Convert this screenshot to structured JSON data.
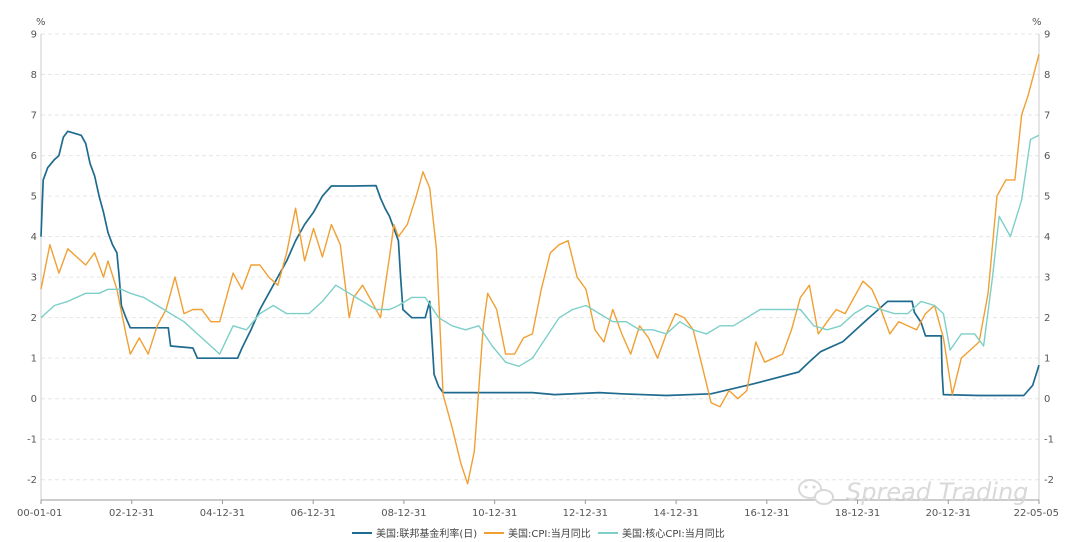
{
  "chart_data": {
    "type": "line",
    "y_unit_left": "%",
    "y_unit_right": "%",
    "ylim": [
      -2.5,
      9
    ],
    "yticks": [
      9,
      8,
      7,
      6,
      5,
      4,
      3,
      2,
      1,
      0,
      -1,
      -2
    ],
    "x_ticks": [
      "00-01-01",
      "02-12-31",
      "04-12-31",
      "06-12-31",
      "08-12-31",
      "10-12-31",
      "12-12-31",
      "14-12-31",
      "16-12-31",
      "18-12-31",
      "20-12-31",
      "22-05-05"
    ],
    "grid": "horizontal-dashed",
    "legend_position": "bottom-center",
    "series": [
      {
        "name": "美国:联邦基金利率(日)",
        "color": "#1f6b8f",
        "points": [
          [
            2000.0,
            4.0
          ],
          [
            2000.05,
            5.4
          ],
          [
            2000.15,
            5.7
          ],
          [
            2000.3,
            5.9
          ],
          [
            2000.4,
            6.0
          ],
          [
            2000.5,
            6.45
          ],
          [
            2000.6,
            6.6
          ],
          [
            2000.75,
            6.55
          ],
          [
            2000.9,
            6.5
          ],
          [
            2001.0,
            6.3
          ],
          [
            2001.1,
            5.8
          ],
          [
            2001.2,
            5.5
          ],
          [
            2001.3,
            5.0
          ],
          [
            2001.4,
            4.6
          ],
          [
            2001.5,
            4.1
          ],
          [
            2001.6,
            3.8
          ],
          [
            2001.7,
            3.6
          ],
          [
            2001.75,
            3.0
          ],
          [
            2001.8,
            2.3
          ],
          [
            2001.9,
            2.0
          ],
          [
            2002.0,
            1.75
          ],
          [
            2002.5,
            1.75
          ],
          [
            2002.85,
            1.75
          ],
          [
            2002.9,
            1.3
          ],
          [
            2003.4,
            1.25
          ],
          [
            2003.5,
            1.0
          ],
          [
            2004.4,
            1.0
          ],
          [
            2004.5,
            1.25
          ],
          [
            2004.7,
            1.7
          ],
          [
            2004.9,
            2.2
          ],
          [
            2005.1,
            2.6
          ],
          [
            2005.3,
            3.0
          ],
          [
            2005.5,
            3.4
          ],
          [
            2005.7,
            3.9
          ],
          [
            2005.9,
            4.3
          ],
          [
            2006.1,
            4.6
          ],
          [
            2006.3,
            5.0
          ],
          [
            2006.5,
            5.25
          ],
          [
            2007.0,
            5.25
          ],
          [
            2007.5,
            5.26
          ],
          [
            2007.6,
            4.95
          ],
          [
            2007.7,
            4.7
          ],
          [
            2007.8,
            4.5
          ],
          [
            2007.9,
            4.2
          ],
          [
            2008.0,
            3.9
          ],
          [
            2008.05,
            3.0
          ],
          [
            2008.1,
            2.2
          ],
          [
            2008.3,
            2.0
          ],
          [
            2008.6,
            2.0
          ],
          [
            2008.7,
            2.4
          ],
          [
            2008.75,
            1.5
          ],
          [
            2008.8,
            0.6
          ],
          [
            2008.9,
            0.3
          ],
          [
            2009.0,
            0.15
          ],
          [
            2010.0,
            0.15
          ],
          [
            2011.0,
            0.15
          ],
          [
            2011.5,
            0.1
          ],
          [
            2012.5,
            0.15
          ],
          [
            2013.0,
            0.12
          ],
          [
            2014.0,
            0.08
          ],
          [
            2015.0,
            0.12
          ],
          [
            2015.96,
            0.37
          ],
          [
            2016.96,
            0.66
          ],
          [
            2017.2,
            0.91
          ],
          [
            2017.45,
            1.16
          ],
          [
            2017.95,
            1.41
          ],
          [
            2018.2,
            1.66
          ],
          [
            2018.45,
            1.91
          ],
          [
            2018.7,
            2.16
          ],
          [
            2018.95,
            2.4
          ],
          [
            2019.5,
            2.4
          ],
          [
            2019.55,
            2.13
          ],
          [
            2019.7,
            1.88
          ],
          [
            2019.8,
            1.55
          ],
          [
            2020.15,
            1.55
          ],
          [
            2020.17,
            0.65
          ],
          [
            2020.2,
            0.1
          ],
          [
            2021.0,
            0.08
          ],
          [
            2022.0,
            0.08
          ],
          [
            2022.2,
            0.33
          ],
          [
            2022.34,
            0.83
          ]
        ]
      },
      {
        "name": "美国:CPI:当月同比",
        "color": "#f0a033",
        "points": [
          [
            2000.0,
            2.7
          ],
          [
            2000.2,
            3.8
          ],
          [
            2000.4,
            3.1
          ],
          [
            2000.6,
            3.7
          ],
          [
            2000.8,
            3.5
          ],
          [
            2001.0,
            3.3
          ],
          [
            2001.2,
            3.6
          ],
          [
            2001.4,
            3.0
          ],
          [
            2001.5,
            3.4
          ],
          [
            2001.7,
            2.7
          ],
          [
            2001.9,
            1.6
          ],
          [
            2002.0,
            1.1
          ],
          [
            2002.2,
            1.5
          ],
          [
            2002.4,
            1.1
          ],
          [
            2002.6,
            1.8
          ],
          [
            2002.8,
            2.2
          ],
          [
            2003.0,
            3.0
          ],
          [
            2003.2,
            2.1
          ],
          [
            2003.4,
            2.2
          ],
          [
            2003.6,
            2.2
          ],
          [
            2003.8,
            1.9
          ],
          [
            2004.0,
            1.9
          ],
          [
            2004.3,
            3.1
          ],
          [
            2004.5,
            2.7
          ],
          [
            2004.7,
            3.3
          ],
          [
            2004.9,
            3.3
          ],
          [
            2005.1,
            3.0
          ],
          [
            2005.3,
            2.8
          ],
          [
            2005.5,
            3.6
          ],
          [
            2005.7,
            4.7
          ],
          [
            2005.9,
            3.4
          ],
          [
            2006.1,
            4.2
          ],
          [
            2006.3,
            3.5
          ],
          [
            2006.5,
            4.3
          ],
          [
            2006.7,
            3.8
          ],
          [
            2006.9,
            2.0
          ],
          [
            2007.0,
            2.5
          ],
          [
            2007.2,
            2.8
          ],
          [
            2007.4,
            2.4
          ],
          [
            2007.6,
            2.0
          ],
          [
            2007.8,
            3.5
          ],
          [
            2007.9,
            4.3
          ],
          [
            2008.0,
            4.0
          ],
          [
            2008.2,
            4.3
          ],
          [
            2008.4,
            5.0
          ],
          [
            2008.55,
            5.6
          ],
          [
            2008.7,
            5.2
          ],
          [
            2008.85,
            3.7
          ],
          [
            2009.0,
            0.1
          ],
          [
            2009.2,
            -0.7
          ],
          [
            2009.4,
            -1.6
          ],
          [
            2009.55,
            -2.1
          ],
          [
            2009.7,
            -1.3
          ],
          [
            2009.9,
            1.8
          ],
          [
            2010.0,
            2.6
          ],
          [
            2010.2,
            2.2
          ],
          [
            2010.4,
            1.1
          ],
          [
            2010.6,
            1.1
          ],
          [
            2010.8,
            1.5
          ],
          [
            2011.0,
            1.6
          ],
          [
            2011.2,
            2.7
          ],
          [
            2011.4,
            3.6
          ],
          [
            2011.6,
            3.8
          ],
          [
            2011.8,
            3.9
          ],
          [
            2012.0,
            3.0
          ],
          [
            2012.2,
            2.7
          ],
          [
            2012.4,
            1.7
          ],
          [
            2012.6,
            1.4
          ],
          [
            2012.8,
            2.2
          ],
          [
            2013.0,
            1.6
          ],
          [
            2013.2,
            1.1
          ],
          [
            2013.4,
            1.8
          ],
          [
            2013.6,
            1.5
          ],
          [
            2013.8,
            1.0
          ],
          [
            2014.0,
            1.6
          ],
          [
            2014.2,
            2.1
          ],
          [
            2014.4,
            2.0
          ],
          [
            2014.6,
            1.7
          ],
          [
            2014.8,
            0.8
          ],
          [
            2015.0,
            -0.1
          ],
          [
            2015.2,
            -0.2
          ],
          [
            2015.4,
            0.2
          ],
          [
            2015.6,
            0.0
          ],
          [
            2015.8,
            0.2
          ],
          [
            2016.0,
            1.4
          ],
          [
            2016.2,
            0.9
          ],
          [
            2016.4,
            1.0
          ],
          [
            2016.6,
            1.1
          ],
          [
            2016.8,
            1.7
          ],
          [
            2017.0,
            2.5
          ],
          [
            2017.2,
            2.8
          ],
          [
            2017.4,
            1.6
          ],
          [
            2017.6,
            1.9
          ],
          [
            2017.8,
            2.2
          ],
          [
            2018.0,
            2.1
          ],
          [
            2018.2,
            2.5
          ],
          [
            2018.4,
            2.9
          ],
          [
            2018.6,
            2.7
          ],
          [
            2018.8,
            2.2
          ],
          [
            2019.0,
            1.6
          ],
          [
            2019.2,
            1.9
          ],
          [
            2019.4,
            1.8
          ],
          [
            2019.6,
            1.7
          ],
          [
            2019.8,
            2.1
          ],
          [
            2020.0,
            2.3
          ],
          [
            2020.2,
            1.5
          ],
          [
            2020.4,
            0.1
          ],
          [
            2020.6,
            1.0
          ],
          [
            2020.8,
            1.2
          ],
          [
            2021.0,
            1.4
          ],
          [
            2021.2,
            2.6
          ],
          [
            2021.4,
            5.0
          ],
          [
            2021.6,
            5.4
          ],
          [
            2021.8,
            5.4
          ],
          [
            2021.95,
            7.0
          ],
          [
            2022.1,
            7.5
          ],
          [
            2022.34,
            8.5
          ]
        ]
      },
      {
        "name": "美国:核心CPI:当月同比",
        "color": "#7dcfc8",
        "points": [
          [
            2000.0,
            2.0
          ],
          [
            2000.3,
            2.3
          ],
          [
            2000.6,
            2.4
          ],
          [
            2001.0,
            2.6
          ],
          [
            2001.3,
            2.6
          ],
          [
            2001.5,
            2.7
          ],
          [
            2001.8,
            2.7
          ],
          [
            2002.0,
            2.6
          ],
          [
            2002.3,
            2.5
          ],
          [
            2002.6,
            2.3
          ],
          [
            2002.9,
            2.1
          ],
          [
            2003.2,
            1.9
          ],
          [
            2003.5,
            1.6
          ],
          [
            2003.8,
            1.3
          ],
          [
            2004.0,
            1.1
          ],
          [
            2004.3,
            1.8
          ],
          [
            2004.6,
            1.7
          ],
          [
            2004.9,
            2.1
          ],
          [
            2005.2,
            2.3
          ],
          [
            2005.5,
            2.1
          ],
          [
            2005.8,
            2.1
          ],
          [
            2006.0,
            2.1
          ],
          [
            2006.3,
            2.4
          ],
          [
            2006.6,
            2.8
          ],
          [
            2006.9,
            2.6
          ],
          [
            2007.2,
            2.4
          ],
          [
            2007.5,
            2.2
          ],
          [
            2007.8,
            2.2
          ],
          [
            2008.0,
            2.3
          ],
          [
            2008.3,
            2.5
          ],
          [
            2008.6,
            2.5
          ],
          [
            2008.9,
            2.0
          ],
          [
            2009.2,
            1.8
          ],
          [
            2009.5,
            1.7
          ],
          [
            2009.8,
            1.8
          ],
          [
            2010.1,
            1.3
          ],
          [
            2010.4,
            0.9
          ],
          [
            2010.7,
            0.8
          ],
          [
            2011.0,
            1.0
          ],
          [
            2011.3,
            1.5
          ],
          [
            2011.6,
            2.0
          ],
          [
            2011.9,
            2.2
          ],
          [
            2012.2,
            2.3
          ],
          [
            2012.5,
            2.1
          ],
          [
            2012.8,
            1.9
          ],
          [
            2013.1,
            1.9
          ],
          [
            2013.4,
            1.7
          ],
          [
            2013.7,
            1.7
          ],
          [
            2014.0,
            1.6
          ],
          [
            2014.3,
            1.9
          ],
          [
            2014.6,
            1.7
          ],
          [
            2014.9,
            1.6
          ],
          [
            2015.2,
            1.8
          ],
          [
            2015.5,
            1.8
          ],
          [
            2015.8,
            2.0
          ],
          [
            2016.1,
            2.2
          ],
          [
            2016.4,
            2.2
          ],
          [
            2016.7,
            2.2
          ],
          [
            2017.0,
            2.2
          ],
          [
            2017.3,
            1.8
          ],
          [
            2017.6,
            1.7
          ],
          [
            2017.9,
            1.8
          ],
          [
            2018.2,
            2.1
          ],
          [
            2018.5,
            2.3
          ],
          [
            2018.8,
            2.2
          ],
          [
            2019.1,
            2.1
          ],
          [
            2019.4,
            2.1
          ],
          [
            2019.7,
            2.4
          ],
          [
            2020.0,
            2.3
          ],
          [
            2020.2,
            2.1
          ],
          [
            2020.35,
            1.2
          ],
          [
            2020.6,
            1.6
          ],
          [
            2020.9,
            1.6
          ],
          [
            2021.1,
            1.3
          ],
          [
            2021.3,
            3.0
          ],
          [
            2021.45,
            4.5
          ],
          [
            2021.7,
            4.0
          ],
          [
            2021.95,
            4.9
          ],
          [
            2022.15,
            6.4
          ],
          [
            2022.34,
            6.5
          ]
        ]
      }
    ]
  },
  "watermark": "Spread Trading"
}
